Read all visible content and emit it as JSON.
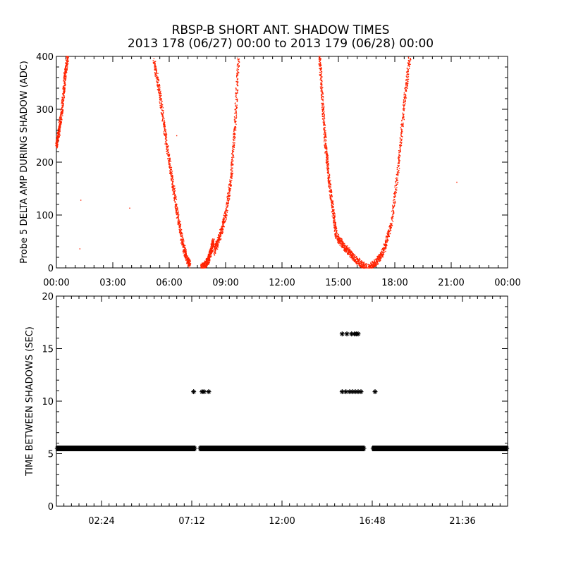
{
  "title_line1": "RBSP-B SHORT ANT. SHADOW TIMES",
  "title_line2": "2013 178 (06/27) 00:00 to 2013 179 (06/28) 00:00",
  "colors": {
    "red": "#ff2200",
    "black": "#000000"
  },
  "chart_data": [
    {
      "type": "scatter",
      "title": "",
      "xlabel": "",
      "ylabel": "Probe 5 DELTA AMP DURING SHADOW (ADC)",
      "xlim": [
        0,
        24
      ],
      "ylim": [
        0,
        400
      ],
      "x_ticks": [
        0,
        3,
        6,
        9,
        12,
        15,
        18,
        21,
        24
      ],
      "x_tick_labels": [
        "00:00",
        "03:00",
        "06:00",
        "09:00",
        "12:00",
        "15:00",
        "18:00",
        "21:00",
        "00:00"
      ],
      "y_ticks": [
        0,
        100,
        200,
        300,
        400
      ],
      "y_tick_labels": [
        "0",
        "100",
        "200",
        "300",
        "400"
      ],
      "grid": false,
      "marker_color": "#ff2200",
      "segments": [
        {
          "x": [
            0.0,
            0.15,
            0.3,
            0.45,
            0.6
          ],
          "y": [
            230,
            260,
            300,
            360,
            400
          ]
        },
        {
          "x": [
            5.2,
            5.5,
            5.8,
            6.1,
            6.4,
            6.7,
            6.9,
            7.1
          ],
          "y": [
            390,
            330,
            250,
            180,
            110,
            50,
            20,
            5
          ]
        },
        {
          "x": [
            7.7,
            7.9,
            8.1,
            8.25,
            8.35
          ],
          "y": [
            0,
            5,
            15,
            35,
            50
          ]
        },
        {
          "x": [
            8.4,
            8.7,
            9.0,
            9.3,
            9.5,
            9.7
          ],
          "y": [
            30,
            60,
            100,
            170,
            270,
            400
          ]
        },
        {
          "x": [
            14.0,
            14.15,
            14.3,
            14.5,
            14.7,
            14.9
          ],
          "y": [
            400,
            320,
            240,
            170,
            110,
            60
          ]
        },
        {
          "x": [
            14.9,
            15.3,
            15.7,
            16.1,
            16.5
          ],
          "y": [
            60,
            40,
            25,
            10,
            0
          ]
        },
        {
          "x": [
            16.6,
            17.0,
            17.4,
            17.8,
            18.2,
            18.5,
            18.8
          ],
          "y": [
            0,
            10,
            30,
            80,
            190,
            310,
            400
          ]
        }
      ],
      "scattered_points": [
        {
          "x": 1.3,
          "y": 128
        },
        {
          "x": 1.25,
          "y": 36
        },
        {
          "x": 3.9,
          "y": 113
        },
        {
          "x": 21.3,
          "y": 162
        },
        {
          "x": 6.4,
          "y": 250
        }
      ]
    },
    {
      "type": "scatter",
      "title": "",
      "xlabel": "",
      "ylabel": "TIME BETWEEN SHADOWS (SEC)",
      "xlim": [
        0,
        24
      ],
      "ylim": [
        0,
        20
      ],
      "x_ticks": [
        2.4,
        7.2,
        12.0,
        16.8,
        21.6
      ],
      "x_tick_labels": [
        "02:24",
        "07:12",
        "12:00",
        "16:48",
        "21:36"
      ],
      "y_ticks": [
        0,
        5,
        10,
        15,
        20
      ],
      "y_tick_labels": [
        "0",
        "5",
        "10",
        "15",
        "20"
      ],
      "grid": false,
      "marker": "asterisk",
      "marker_color": "#000000",
      "baseline_value": 5.5,
      "baseline_ranges": [
        [
          0.0,
          7.4
        ],
        [
          7.6,
          16.4
        ],
        [
          16.8,
          24.0
        ]
      ],
      "points": [
        {
          "x": 7.3,
          "y": 10.9
        },
        {
          "x": 7.75,
          "y": 10.9
        },
        {
          "x": 7.85,
          "y": 10.9
        },
        {
          "x": 8.1,
          "y": 10.9
        },
        {
          "x": 15.2,
          "y": 10.9
        },
        {
          "x": 15.4,
          "y": 10.9
        },
        {
          "x": 15.6,
          "y": 10.9
        },
        {
          "x": 15.75,
          "y": 10.9
        },
        {
          "x": 15.9,
          "y": 10.9
        },
        {
          "x": 16.05,
          "y": 10.9
        },
        {
          "x": 16.2,
          "y": 10.9
        },
        {
          "x": 16.95,
          "y": 10.9
        },
        {
          "x": 15.2,
          "y": 16.4
        },
        {
          "x": 15.45,
          "y": 16.4
        },
        {
          "x": 15.7,
          "y": 16.4
        },
        {
          "x": 15.85,
          "y": 16.4
        },
        {
          "x": 15.95,
          "y": 16.4
        },
        {
          "x": 16.05,
          "y": 16.4
        }
      ]
    }
  ]
}
